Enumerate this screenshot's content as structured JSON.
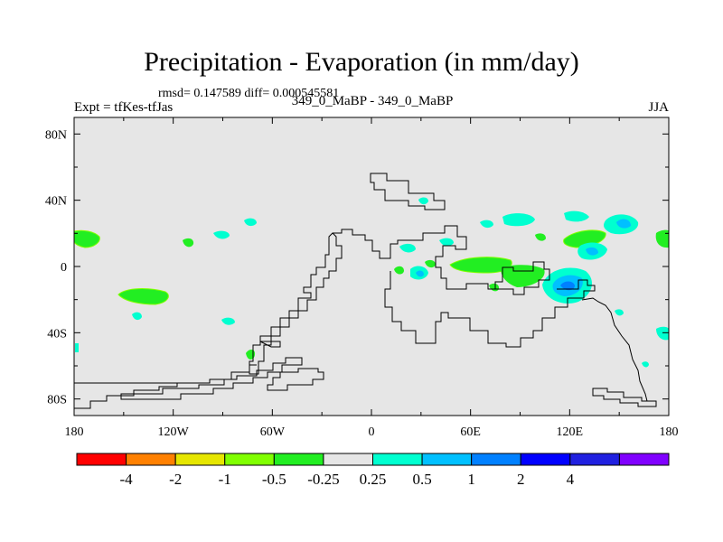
{
  "title": "Precipitation - Evaporation (in mm/day)",
  "stats": "rmsd= 0.147589 diff= 0.000545581",
  "experiment": "Expt = tfKes-tfJas",
  "runs": "349_0_MaBP - 349_0_MaBP",
  "season": "JJA",
  "axes": {
    "x_ticks": [
      {
        "value": -180,
        "label": "180"
      },
      {
        "value": -120,
        "label": "120W"
      },
      {
        "value": -60,
        "label": "60W"
      },
      {
        "value": 0,
        "label": "0"
      },
      {
        "value": 60,
        "label": "60E"
      },
      {
        "value": 120,
        "label": "120E"
      },
      {
        "value": 180,
        "label": "180"
      }
    ],
    "y_ticks": [
      {
        "value": 80,
        "label": "80N"
      },
      {
        "value": 40,
        "label": "40N"
      },
      {
        "value": 0,
        "label": "0"
      },
      {
        "value": -40,
        "label": "40S"
      },
      {
        "value": -80,
        "label": "80S"
      }
    ]
  },
  "colorbar": {
    "colors": [
      "#ff0000",
      "#ff8000",
      "#e6e600",
      "#80ff00",
      "#22ee22",
      "#e6e6e6",
      "#00ffd0",
      "#00c0ff",
      "#0080ff",
      "#0000ff",
      "#2020e0",
      "#8000ff"
    ],
    "labels": [
      "-4",
      "-2",
      "-1",
      "-0.5",
      "-0.25",
      "0.25",
      "0.5",
      "1",
      "2",
      "4"
    ]
  },
  "background_color": "#e6e6e6",
  "chart_data": {
    "type": "heatmap",
    "title": "Precipitation - Evaporation (in mm/day)",
    "xlim": [
      -180,
      180
    ],
    "ylim": [
      -90,
      90
    ],
    "units": "mm/day",
    "levels": [
      -4,
      -2,
      -1,
      -0.5,
      -0.25,
      0.25,
      0.5,
      1,
      2,
      4
    ],
    "anomaly_patches": [
      {
        "lon": -175,
        "lat": 16,
        "level": -0.25
      },
      {
        "lon": -148,
        "lat": -18,
        "level": -0.25
      },
      {
        "lon": -110,
        "lat": 18,
        "level": -0.25
      },
      {
        "lon": -78,
        "lat": -53,
        "level": -0.25
      },
      {
        "lon": 65,
        "lat": 1,
        "level": -0.25
      },
      {
        "lon": 100,
        "lat": -8,
        "level": -0.25
      },
      {
        "lon": 130,
        "lat": 18,
        "level": -0.25
      },
      {
        "lon": 178,
        "lat": 16,
        "level": -0.25
      },
      {
        "lon": 30,
        "lat": -6,
        "level": 0.5
      },
      {
        "lon": 120,
        "lat": -13,
        "level": 1
      },
      {
        "lon": 150,
        "lat": 25,
        "level": 0.5
      },
      {
        "lon": 30,
        "lat": 12,
        "level": 0.25
      },
      {
        "lon": -150,
        "lat": -30,
        "level": 0.25
      },
      {
        "lon": -90,
        "lat": 20,
        "level": 0.25
      },
      {
        "lon": 175,
        "lat": -42,
        "level": 0.25
      }
    ]
  }
}
